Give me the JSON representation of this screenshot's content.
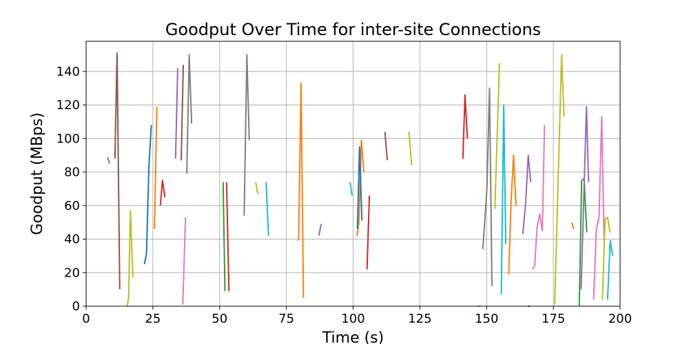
{
  "chart_data": {
    "type": "line",
    "title": "Goodput Over Time for inter-site Connections",
    "xlabel": "Time (s)",
    "ylabel": "Goodput (MBps)",
    "xlim": [
      0,
      200
    ],
    "ylim": [
      0,
      158
    ],
    "xticks": [
      0,
      25,
      50,
      75,
      100,
      125,
      150,
      175,
      200
    ],
    "yticks": [
      0,
      20,
      40,
      60,
      80,
      100,
      120,
      140
    ],
    "grid": true,
    "color_cycle": [
      "#1f77b4",
      "#ff7f0e",
      "#2ca02c",
      "#d62728",
      "#9467bd",
      "#8c564b",
      "#e377c2",
      "#7f7f7f",
      "#bcbd22",
      "#17becf"
    ],
    "series": [
      {
        "color": "#9467bd",
        "points": [
          [
            8,
            89
          ],
          [
            8.8,
            85
          ]
        ]
      },
      {
        "color": "#8c564b",
        "points": [
          [
            10.8,
            88
          ],
          [
            11.6,
            151
          ],
          [
            12.6,
            10
          ]
        ]
      },
      {
        "color": "#bcbd22",
        "points": [
          [
            15.4,
            0
          ],
          [
            15.9,
            5
          ],
          [
            16.6,
            57
          ],
          [
            17.5,
            17
          ]
        ]
      },
      {
        "color": "#1f77b4",
        "points": [
          [
            21.8,
            25
          ],
          [
            22.6,
            31
          ],
          [
            23.5,
            83
          ],
          [
            24.4,
            108
          ]
        ]
      },
      {
        "color": "#ff7f0e",
        "points": [
          [
            25.6,
            46
          ],
          [
            26.5,
            119
          ]
        ]
      },
      {
        "color": "#d62728",
        "points": [
          [
            27.8,
            60
          ],
          [
            28.6,
            75
          ],
          [
            29.5,
            65
          ]
        ]
      },
      {
        "color": "#9467bd",
        "points": [
          [
            33.5,
            88
          ],
          [
            34.3,
            142
          ]
        ]
      },
      {
        "color": "#8c564b",
        "points": [
          [
            35.6,
            87
          ],
          [
            36.4,
            144
          ]
        ]
      },
      {
        "color": "#e377c2",
        "points": [
          [
            36.2,
            1
          ],
          [
            37.2,
            53
          ]
        ]
      },
      {
        "color": "#7f7f7f",
        "points": [
          [
            37.7,
            79
          ],
          [
            38.6,
            150
          ],
          [
            39.5,
            109
          ]
        ]
      },
      {
        "color": "#2ca02c",
        "points": [
          [
            51.3,
            74
          ],
          [
            52,
            9
          ]
        ]
      },
      {
        "color": "#d62728",
        "points": [
          [
            52.6,
            74
          ],
          [
            53.5,
            9
          ]
        ]
      },
      {
        "color": "#7f7f7f",
        "points": [
          [
            59.2,
            54
          ],
          [
            60.2,
            150
          ],
          [
            61.1,
            99
          ]
        ]
      },
      {
        "color": "#bcbd22",
        "points": [
          [
            63.5,
            74
          ],
          [
            64.3,
            67
          ]
        ]
      },
      {
        "color": "#17becf",
        "points": [
          [
            67.4,
            74
          ],
          [
            68.3,
            42
          ]
        ]
      },
      {
        "color": "#ff7f0e",
        "points": [
          [
            79.6,
            39
          ],
          [
            80.5,
            133
          ],
          [
            81.4,
            5
          ]
        ]
      },
      {
        "color": "#9467bd",
        "points": [
          [
            87.2,
            42
          ],
          [
            88,
            49
          ]
        ]
      },
      {
        "color": "#17becf",
        "points": [
          [
            98.9,
            74
          ],
          [
            99.6,
            66
          ]
        ]
      },
      {
        "color": "#ff7f0e",
        "points": [
          [
            101.4,
            42
          ],
          [
            102.2,
            50
          ],
          [
            103.1,
            99
          ],
          [
            104,
            80
          ]
        ]
      },
      {
        "color": "#1f77b4",
        "points": [
          [
            101.6,
            46
          ],
          [
            102.4,
            95
          ],
          [
            103.3,
            51
          ]
        ]
      },
      {
        "color": "#d62728",
        "points": [
          [
            105.2,
            22
          ],
          [
            106.1,
            66
          ]
        ]
      },
      {
        "color": "#8c564b",
        "points": [
          [
            111.9,
            104
          ],
          [
            112.8,
            87
          ]
        ]
      },
      {
        "color": "#bcbd22",
        "points": [
          [
            120.9,
            104
          ],
          [
            121.9,
            84
          ]
        ]
      },
      {
        "color": "#d62728",
        "points": [
          [
            141.1,
            88
          ],
          [
            141.9,
            126
          ],
          [
            142.8,
            100
          ]
        ]
      },
      {
        "color": "#ff7f0e",
        "points": [
          [
            146.7,
            0
          ],
          [
            147.5,
            0
          ]
        ]
      },
      {
        "color": "#7f7f7f",
        "points": [
          [
            148.6,
            34
          ],
          [
            150.1,
            69
          ],
          [
            151.1,
            130
          ],
          [
            152,
            12
          ]
        ]
      },
      {
        "color": "#bcbd22",
        "points": [
          [
            153.1,
            58
          ],
          [
            154.8,
            145
          ]
        ]
      },
      {
        "color": "#17becf",
        "points": [
          [
            155.5,
            7
          ],
          [
            156.4,
            120
          ],
          [
            157.2,
            37
          ]
        ]
      },
      {
        "color": "#ff7f0e",
        "points": [
          [
            158.3,
            19
          ],
          [
            159.1,
            60
          ],
          [
            160.1,
            90
          ],
          [
            161,
            60
          ]
        ]
      },
      {
        "color": "#9467bd",
        "points": [
          [
            163.6,
            43
          ],
          [
            164.6,
            61
          ],
          [
            165.6,
            90
          ],
          [
            166.5,
            74
          ]
        ]
      },
      {
        "color": "#1f77b4",
        "points": [
          [
            165.4,
            0
          ],
          [
            166.2,
            0
          ]
        ]
      },
      {
        "color": "#e377c2",
        "points": [
          [
            167.1,
            22
          ],
          [
            168,
            24
          ],
          [
            168.9,
            47
          ],
          [
            169.9,
            55
          ],
          [
            170.9,
            45
          ],
          [
            171.7,
            108
          ]
        ]
      },
      {
        "color": "#bcbd22",
        "points": [
          [
            175.5,
            1
          ],
          [
            178.1,
            150
          ],
          [
            179,
            113
          ]
        ]
      },
      {
        "color": "#ff7f0e",
        "points": [
          [
            181.8,
            50
          ],
          [
            182.6,
            46
          ]
        ]
      },
      {
        "color": "#2ca02c",
        "points": [
          [
            184.7,
            0
          ],
          [
            185.6,
            75
          ],
          [
            186.5,
            76
          ],
          [
            187.5,
            44
          ]
        ]
      },
      {
        "color": "#9467bd",
        "points": [
          [
            185.4,
            10
          ],
          [
            187.4,
            119
          ],
          [
            188.2,
            74
          ]
        ]
      },
      {
        "color": "#e377c2",
        "points": [
          [
            190.1,
            4
          ],
          [
            191.1,
            46
          ],
          [
            192.1,
            53
          ],
          [
            193.1,
            113
          ],
          [
            194.1,
            34
          ]
        ]
      },
      {
        "color": "#bcbd22",
        "points": [
          [
            193.4,
            4
          ],
          [
            194.4,
            52
          ],
          [
            195.3,
            53
          ],
          [
            196.2,
            44
          ]
        ]
      },
      {
        "color": "#17becf",
        "points": [
          [
            195.3,
            4
          ],
          [
            196.3,
            39
          ],
          [
            197.2,
            30
          ]
        ]
      }
    ]
  }
}
